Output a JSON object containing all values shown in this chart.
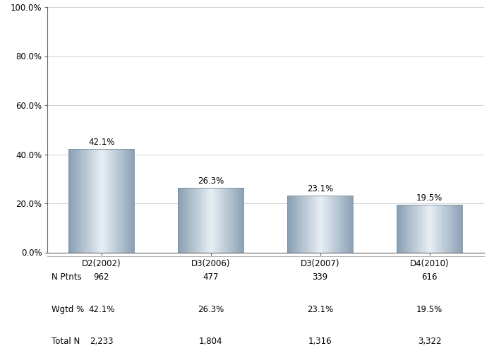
{
  "categories": [
    "D2(2002)",
    "D3(2006)",
    "D3(2007)",
    "D4(2010)"
  ],
  "values": [
    42.1,
    26.3,
    23.1,
    19.5
  ],
  "bar_labels": [
    "42.1%",
    "26.3%",
    "23.1%",
    "19.5%"
  ],
  "ylim": [
    0,
    100
  ],
  "yticks": [
    0,
    20.0,
    40.0,
    60.0,
    80.0,
    100.0
  ],
  "ytick_labels": [
    "0.0%",
    "20.0%",
    "40.0%",
    "60.0%",
    "80.0%",
    "100.0%"
  ],
  "table_rows": [
    "N Ptnts",
    "Wgtd %",
    "Total N"
  ],
  "table_data": [
    [
      "962",
      "477",
      "339",
      "616"
    ],
    [
      "42.1%",
      "26.3%",
      "23.1%",
      "19.5%"
    ],
    [
      "2,233",
      "1,804",
      "1,316",
      "3,322"
    ]
  ],
  "background_color": "#ffffff",
  "grid_color": "#d0d0d0",
  "text_color": "#000000",
  "bar_dark": [
    0.537,
    0.624,
    0.702
  ],
  "bar_light": [
    0.906,
    0.933,
    0.957
  ]
}
